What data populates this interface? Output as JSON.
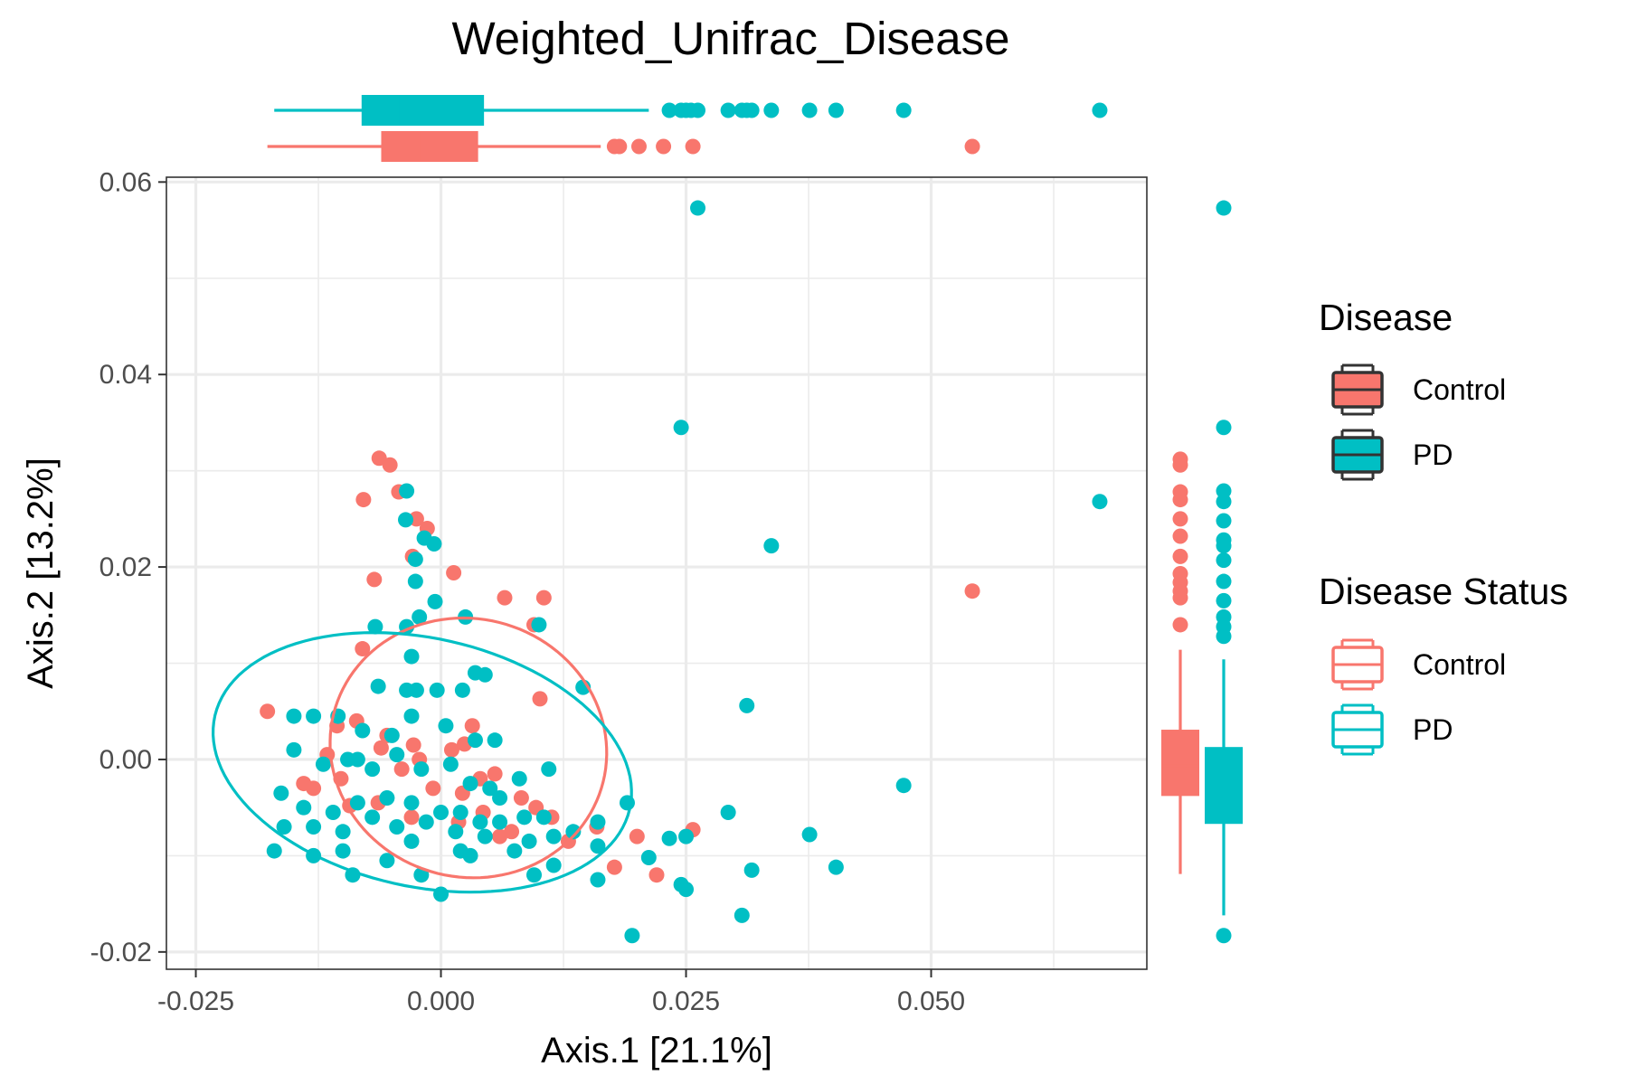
{
  "chart_data": {
    "type": "scatter",
    "title": "Weighted_Unifrac_Disease",
    "xlabel": "Axis.1   [21.1%]",
    "ylabel": "Axis.2   [13.2%]",
    "xlim": [
      -0.028,
      0.072
    ],
    "ylim": [
      -0.0218,
      0.0605
    ],
    "x_ticks": [
      -0.025,
      0.0,
      0.025,
      0.05
    ],
    "x_tick_labels": [
      "-0.025",
      "0.000",
      "0.025",
      "0.050"
    ],
    "y_ticks": [
      -0.02,
      0.0,
      0.02,
      0.04,
      0.06
    ],
    "y_tick_labels": [
      "-0.02",
      "0.00",
      "0.02",
      "0.04",
      "0.06"
    ],
    "grid": true,
    "legend_position": "right",
    "legends": [
      {
        "title": "Disease",
        "style": "filled",
        "entries": [
          "Control",
          "PD"
        ]
      },
      {
        "title": "Disease Status",
        "style": "outline",
        "entries": [
          "Control",
          "PD"
        ]
      }
    ],
    "colors": {
      "Control": "#F8766D",
      "PD": "#00BFC4"
    },
    "ellipses": [
      {
        "group": "Control",
        "cx": 0.0028,
        "cy": 0.0012,
        "rx": 0.0142,
        "ry": 0.0134,
        "angle_deg": -20
      },
      {
        "group": "PD",
        "cx": -0.0019,
        "cy": -0.0003,
        "rx": 0.0217,
        "ry": 0.0129,
        "angle_deg": -13
      }
    ],
    "marginal_x_boxplots": [
      {
        "group": "PD",
        "min": -0.017,
        "q1": -0.008,
        "median": -0.0044,
        "q3": 0.0043,
        "max": 0.0212,
        "outliers": [
          0.0233,
          0.0245,
          0.025,
          0.0255,
          0.0262,
          0.0293,
          0.0307,
          0.0312,
          0.0317,
          0.0337,
          0.0376,
          0.0403,
          0.0472,
          0.0672
        ]
      },
      {
        "group": "Control",
        "min": -0.0177,
        "q1": -0.006,
        "median": -0.002,
        "q3": 0.0037,
        "max": 0.0163,
        "outliers": [
          0.0177,
          0.0182,
          0.0202,
          0.0227,
          0.0257,
          0.0542
        ]
      }
    ],
    "marginal_y_boxplots": [
      {
        "group": "Control",
        "min": -0.0119,
        "q1": -0.0037,
        "median": -0.0007,
        "q3": 0.003,
        "max": 0.0114,
        "outliers": [
          0.014,
          0.0168,
          0.0175,
          0.0184,
          0.0193,
          0.0211,
          0.0232,
          0.025,
          0.027,
          0.0278,
          0.0306,
          0.0312
        ]
      },
      {
        "group": "PD",
        "min": -0.0162,
        "q1": -0.0066,
        "median": -0.0029,
        "q3": 0.0012,
        "max": 0.0104,
        "outliers": [
          -0.0183,
          0.0128,
          0.0138,
          0.0148,
          0.0165,
          0.0185,
          0.0207,
          0.0222,
          0.0228,
          0.0248,
          0.0268,
          0.0279,
          0.0345,
          0.0573
        ]
      }
    ],
    "series": [
      {
        "name": "Control",
        "points": [
          [
            -0.0063,
            0.0313
          ],
          [
            -0.0052,
            0.0306
          ],
          [
            -0.0043,
            0.0278
          ],
          [
            -0.0079,
            0.027
          ],
          [
            -0.0025,
            0.025
          ],
          [
            -0.0014,
            0.024
          ],
          [
            -0.0029,
            0.0211
          ],
          [
            0.0013,
            0.0194
          ],
          [
            -0.0068,
            0.0187
          ],
          [
            0.0065,
            0.0168
          ],
          [
            0.0105,
            0.0168
          ],
          [
            0.0095,
            0.014
          ],
          [
            0.0542,
            0.0175
          ],
          [
            -0.008,
            0.0115
          ],
          [
            0.0101,
            0.0063
          ],
          [
            -0.0177,
            0.005
          ],
          [
            -0.0086,
            0.004
          ],
          [
            0.0032,
            0.0035
          ],
          [
            -0.0055,
            0.0025
          ],
          [
            0.0011,
            0.001
          ],
          [
            -0.0022,
            0.0
          ],
          [
            -0.004,
            -0.001
          ],
          [
            -0.0116,
            0.0005
          ],
          [
            -0.0102,
            -0.002
          ],
          [
            -0.013,
            -0.003
          ],
          [
            0.004,
            -0.002
          ],
          [
            0.0022,
            -0.0035
          ],
          [
            -0.0064,
            -0.0045
          ],
          [
            0.0082,
            -0.004
          ],
          [
            0.0097,
            -0.005
          ],
          [
            0.0043,
            -0.0055
          ],
          [
            -0.003,
            -0.006
          ],
          [
            0.0018,
            -0.0065
          ],
          [
            0.0072,
            -0.0075
          ],
          [
            0.0113,
            -0.006
          ],
          [
            0.0159,
            -0.007
          ],
          [
            0.02,
            -0.008
          ],
          [
            0.0257,
            -0.0073
          ],
          [
            0.022,
            -0.012
          ],
          [
            0.0177,
            -0.0112
          ],
          [
            0.013,
            -0.0085
          ],
          [
            0.006,
            -0.008
          ],
          [
            -0.0008,
            -0.003
          ],
          [
            -0.0028,
            0.0015
          ],
          [
            -0.014,
            -0.0025
          ],
          [
            -0.0106,
            0.0035
          ],
          [
            -0.0061,
            0.0012
          ],
          [
            0.0024,
            0.0016
          ],
          [
            0.0055,
            -0.0015
          ],
          [
            -0.0093,
            -0.0048
          ]
        ]
      },
      {
        "name": "PD",
        "points": [
          [
            0.0262,
            0.0573
          ],
          [
            0.0245,
            0.0345
          ],
          [
            0.0672,
            0.0268
          ],
          [
            -0.0035,
            0.0279
          ],
          [
            -0.0036,
            0.0249
          ],
          [
            -0.0017,
            0.023
          ],
          [
            -0.0007,
            0.0224
          ],
          [
            -0.0026,
            0.0208
          ],
          [
            -0.0026,
            0.0185
          ],
          [
            -0.0006,
            0.0164
          ],
          [
            0.0025,
            0.0148
          ],
          [
            -0.0022,
            0.0148
          ],
          [
            -0.0035,
            0.0138
          ],
          [
            -0.0067,
            0.0138
          ],
          [
            0.01,
            0.014
          ],
          [
            -0.003,
            0.0107
          ],
          [
            0.0035,
            0.009
          ],
          [
            0.0045,
            0.0088
          ],
          [
            0.0145,
            0.0075
          ],
          [
            -0.0064,
            0.0076
          ],
          [
            -0.0035,
            0.0072
          ],
          [
            -0.0025,
            0.0072
          ],
          [
            -0.0004,
            0.0072
          ],
          [
            0.0022,
            0.0072
          ],
          [
            0.0312,
            0.0056
          ],
          [
            -0.013,
            0.0045
          ],
          [
            -0.0105,
            0.0045
          ],
          [
            -0.008,
            0.003
          ],
          [
            -0.005,
            0.0025
          ],
          [
            -0.003,
            0.0045
          ],
          [
            0.0005,
            0.0035
          ],
          [
            0.0035,
            0.002
          ],
          [
            0.0055,
            0.002
          ],
          [
            -0.015,
            0.001
          ],
          [
            -0.012,
            -0.0005
          ],
          [
            -0.0095,
            0.0
          ],
          [
            -0.007,
            -0.001
          ],
          [
            -0.0045,
            0.0005
          ],
          [
            -0.002,
            -0.001
          ],
          [
            0.001,
            -0.0005
          ],
          [
            0.003,
            -0.0025
          ],
          [
            0.005,
            -0.003
          ],
          [
            0.008,
            -0.002
          ],
          [
            0.011,
            -0.001
          ],
          [
            -0.0163,
            -0.0035
          ],
          [
            -0.014,
            -0.005
          ],
          [
            -0.011,
            -0.0055
          ],
          [
            -0.0085,
            -0.0045
          ],
          [
            -0.0055,
            -0.004
          ],
          [
            -0.003,
            -0.0045
          ],
          [
            0.0,
            -0.0055
          ],
          [
            0.002,
            -0.0055
          ],
          [
            0.004,
            -0.0065
          ],
          [
            0.006,
            -0.0065
          ],
          [
            0.0085,
            -0.006
          ],
          [
            0.0105,
            -0.006
          ],
          [
            0.0135,
            -0.0075
          ],
          [
            0.016,
            -0.0065
          ],
          [
            0.019,
            -0.0045
          ],
          [
            -0.016,
            -0.007
          ],
          [
            -0.013,
            -0.007
          ],
          [
            -0.01,
            -0.0075
          ],
          [
            -0.007,
            -0.006
          ],
          [
            -0.0045,
            -0.007
          ],
          [
            -0.0015,
            -0.0065
          ],
          [
            0.0015,
            -0.0075
          ],
          [
            0.0045,
            -0.008
          ],
          [
            0.009,
            -0.0085
          ],
          [
            0.0115,
            -0.008
          ],
          [
            0.016,
            -0.009
          ],
          [
            -0.017,
            -0.0095
          ],
          [
            -0.013,
            -0.01
          ],
          [
            -0.01,
            -0.0095
          ],
          [
            -0.009,
            -0.012
          ],
          [
            -0.0055,
            -0.0105
          ],
          [
            -0.003,
            -0.0085
          ],
          [
            -0.002,
            -0.012
          ],
          [
            0.0,
            -0.014
          ],
          [
            0.002,
            -0.0095
          ],
          [
            0.003,
            -0.01
          ],
          [
            0.0075,
            -0.0095
          ],
          [
            0.0095,
            -0.012
          ],
          [
            0.0115,
            -0.011
          ],
          [
            0.016,
            -0.0125
          ],
          [
            0.0195,
            -0.0183
          ],
          [
            0.0212,
            -0.0102
          ],
          [
            0.0233,
            -0.0082
          ],
          [
            0.025,
            -0.008
          ],
          [
            0.0245,
            -0.013
          ],
          [
            0.025,
            -0.0135
          ],
          [
            0.0293,
            -0.0055
          ],
          [
            0.0307,
            -0.0162
          ],
          [
            0.0317,
            -0.0115
          ],
          [
            0.0337,
            0.0222
          ],
          [
            0.0376,
            -0.0078
          ],
          [
            0.0403,
            -0.0112
          ],
          [
            0.0472,
            -0.0027
          ],
          [
            -0.015,
            0.0045
          ],
          [
            -0.0085,
            0.0
          ],
          [
            0.006,
            -0.004
          ]
        ]
      }
    ]
  }
}
